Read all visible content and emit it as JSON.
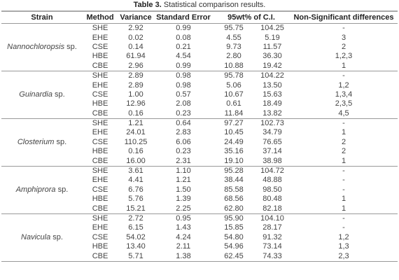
{
  "caption": {
    "label": "Table 3.",
    "text": "Statistical comparison results."
  },
  "table": {
    "headers": [
      "Strain",
      "Method",
      "Variance",
      "Standard Error",
      "95wt% of C.I.",
      "Non-Significant differences"
    ],
    "groups": [
      {
        "strain": {
          "genus": "Nannochloropsis",
          "suffix": "sp."
        },
        "rows": [
          [
            "SHE",
            "2.92",
            "0.99",
            "95.75",
            "104.25",
            "-"
          ],
          [
            "EHE",
            "0.02",
            "0.08",
            "4.55",
            "5.19",
            "3"
          ],
          [
            "CSE",
            "0.14",
            "0.21",
            "9.73",
            "11.57",
            "2"
          ],
          [
            "HBE",
            "61.94",
            "4.54",
            "2.80",
            "36.30",
            "1,2,3"
          ],
          [
            "CBE",
            "2.96",
            "0.99",
            "10.88",
            "19.42",
            "1"
          ]
        ]
      },
      {
        "strain": {
          "genus": "Guinardia",
          "suffix": "sp."
        },
        "rows": [
          [
            "SHE",
            "2.89",
            "0.98",
            "95.78",
            "104.22",
            "-"
          ],
          [
            "EHE",
            "2.89",
            "0.98",
            "5.06",
            "13.50",
            "1,2"
          ],
          [
            "CSE",
            "1.00",
            "0.57",
            "10.67",
            "15.63",
            "1,3,4"
          ],
          [
            "HBE",
            "12.96",
            "2.08",
            "0.61",
            "18.49",
            "2,3,5"
          ],
          [
            "CBE",
            "0.16",
            "0.23",
            "11.84",
            "13.82",
            "4,5"
          ]
        ]
      },
      {
        "strain": {
          "genus": "Closterium",
          "suffix": "sp."
        },
        "rows": [
          [
            "SHE",
            "1.21",
            "0.64",
            "97.27",
            "102.73",
            "-"
          ],
          [
            "EHE",
            "24.01",
            "2.83",
            "10.45",
            "34.79",
            "1"
          ],
          [
            "CSE",
            "110.25",
            "6.06",
            "24.49",
            "76.65",
            "2"
          ],
          [
            "HBE",
            "0.16",
            "0.23",
            "35.16",
            "37.14",
            "2"
          ],
          [
            "CBE",
            "16.00",
            "2.31",
            "19.10",
            "38.98",
            "1"
          ]
        ]
      },
      {
        "strain": {
          "genus": "Amphiprora",
          "suffix": "sp."
        },
        "rows": [
          [
            "SHE",
            "3.61",
            "1.10",
            "95.28",
            "104.72",
            "-"
          ],
          [
            "EHE",
            "4.41",
            "1.21",
            "38.44",
            "48.88",
            "-"
          ],
          [
            "CSE",
            "6.76",
            "1.50",
            "85.58",
            "98.50",
            "-"
          ],
          [
            "HBE",
            "5.76",
            "1.39",
            "68.56",
            "80.48",
            "1"
          ],
          [
            "CBE",
            "15.21",
            "2.25",
            "62.80",
            "82.18",
            "1"
          ]
        ]
      },
      {
        "strain": {
          "genus": "Navicula",
          "suffix": "sp."
        },
        "rows": [
          [
            "SHE",
            "2.72",
            "0.95",
            "95.90",
            "104.10",
            "-"
          ],
          [
            "EHE",
            "6.15",
            "1.43",
            "15.85",
            "28.17",
            "-"
          ],
          [
            "CSE",
            "54.02",
            "4.24",
            "54.80",
            "91.32",
            "1,2"
          ],
          [
            "HBE",
            "13.40",
            "2.11",
            "54.96",
            "73.14",
            "1,3"
          ],
          [
            "CBE",
            "5.71",
            "1.38",
            "62.45",
            "74.33",
            "2,3"
          ]
        ]
      }
    ]
  }
}
